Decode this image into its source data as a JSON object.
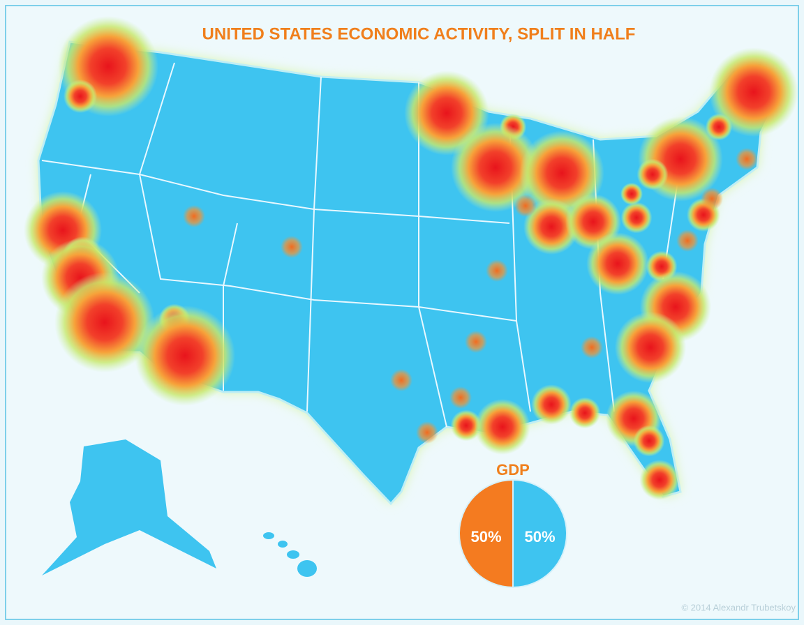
{
  "map": {
    "title": "UNITED STATES ECONOMIC ACTIVITY, SPLIT IN HALF",
    "credit": "© 2014 Alexandr Trubetskoy"
  },
  "chart_data": {
    "type": "pie",
    "title": "GDP",
    "values": [
      50,
      50
    ],
    "value_labels": [
      "50%",
      "50%"
    ],
    "colors": [
      "#3ec4f0",
      "#f47b20"
    ]
  }
}
